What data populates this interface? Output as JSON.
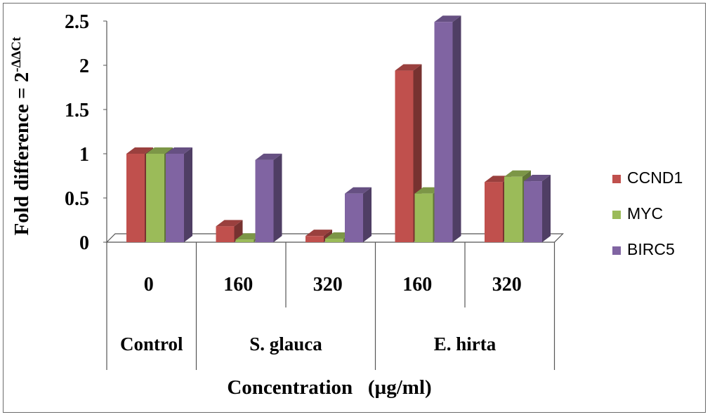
{
  "chart_data": {
    "type": "bar",
    "x_labels": [
      "0",
      "160",
      "320",
      "160",
      "320"
    ],
    "groups": [
      {
        "label": "Control",
        "span": 1
      },
      {
        "label": "S. glauca",
        "span": 2
      },
      {
        "label": "E. hirta",
        "span": 2
      }
    ],
    "series": [
      {
        "name": "CCND1",
        "values": [
          1.0,
          0.18,
          0.07,
          1.94,
          0.68
        ],
        "color": "#c0504d"
      },
      {
        "name": "MYC",
        "values": [
          1.0,
          0.03,
          0.04,
          0.55,
          0.74
        ],
        "color": "#9bbb59"
      },
      {
        "name": "BIRC5",
        "values": [
          1.0,
          0.93,
          0.55,
          2.49,
          0.69
        ],
        "color": "#8064a2"
      }
    ],
    "ylabel": "Fold difference  = 2",
    "ylabel_superscript": "-ΔΔCt",
    "xlabel": "Concentration   (µg/ml)",
    "ylim": [
      0,
      2.5
    ],
    "yticks": [
      "0",
      "0.5",
      "1",
      "1.5",
      "2",
      "2.5"
    ],
    "legend_position": "right",
    "style": "3d-clustered-column",
    "grid": false
  }
}
